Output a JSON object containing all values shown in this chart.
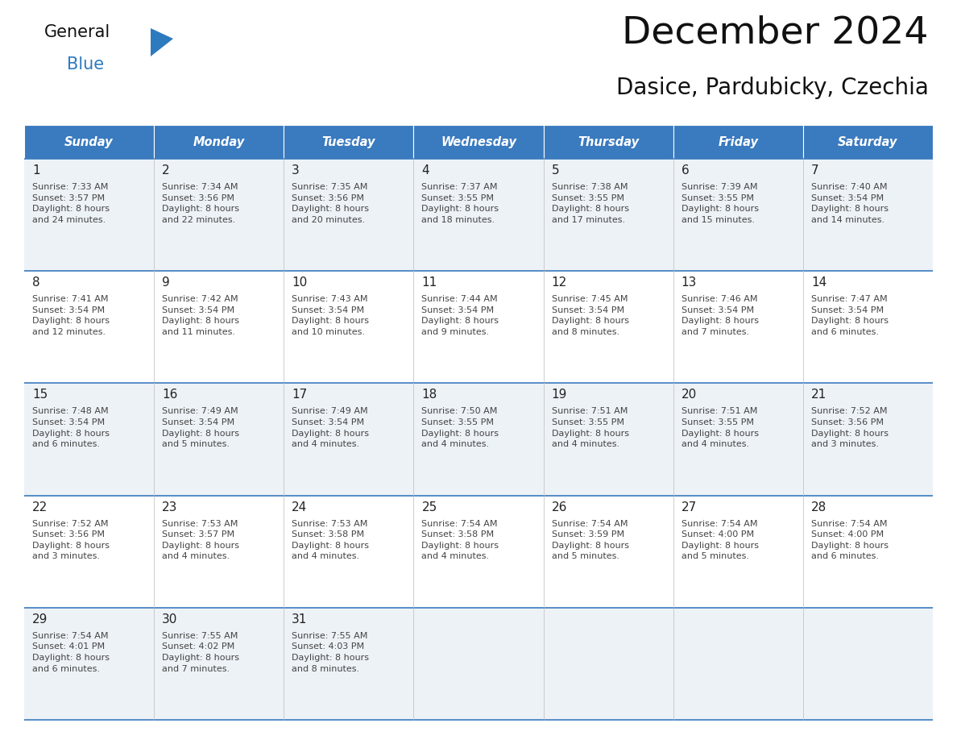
{
  "title": "December 2024",
  "subtitle": "Dasice, Pardubicky, Czechia",
  "days_of_week": [
    "Sunday",
    "Monday",
    "Tuesday",
    "Wednesday",
    "Thursday",
    "Friday",
    "Saturday"
  ],
  "header_bg": "#3a7abf",
  "header_text": "#ffffff",
  "cell_bg_odd": "#edf2f7",
  "cell_bg_even": "#ffffff",
  "line_color": "#3a7abf",
  "day_number_color": "#222222",
  "cell_text_color": "#444444",
  "title_color": "#111111",
  "logo_general_color": "#111111",
  "logo_blue_color": "#2e7abf",
  "calendar_data": [
    [
      {
        "day": 1,
        "sunrise": "7:33 AM",
        "sunset": "3:57 PM",
        "daylight": "8 hours\nand 24 minutes."
      },
      {
        "day": 2,
        "sunrise": "7:34 AM",
        "sunset": "3:56 PM",
        "daylight": "8 hours\nand 22 minutes."
      },
      {
        "day": 3,
        "sunrise": "7:35 AM",
        "sunset": "3:56 PM",
        "daylight": "8 hours\nand 20 minutes."
      },
      {
        "day": 4,
        "sunrise": "7:37 AM",
        "sunset": "3:55 PM",
        "daylight": "8 hours\nand 18 minutes."
      },
      {
        "day": 5,
        "sunrise": "7:38 AM",
        "sunset": "3:55 PM",
        "daylight": "8 hours\nand 17 minutes."
      },
      {
        "day": 6,
        "sunrise": "7:39 AM",
        "sunset": "3:55 PM",
        "daylight": "8 hours\nand 15 minutes."
      },
      {
        "day": 7,
        "sunrise": "7:40 AM",
        "sunset": "3:54 PM",
        "daylight": "8 hours\nand 14 minutes."
      }
    ],
    [
      {
        "day": 8,
        "sunrise": "7:41 AM",
        "sunset": "3:54 PM",
        "daylight": "8 hours\nand 12 minutes."
      },
      {
        "day": 9,
        "sunrise": "7:42 AM",
        "sunset": "3:54 PM",
        "daylight": "8 hours\nand 11 minutes."
      },
      {
        "day": 10,
        "sunrise": "7:43 AM",
        "sunset": "3:54 PM",
        "daylight": "8 hours\nand 10 minutes."
      },
      {
        "day": 11,
        "sunrise": "7:44 AM",
        "sunset": "3:54 PM",
        "daylight": "8 hours\nand 9 minutes."
      },
      {
        "day": 12,
        "sunrise": "7:45 AM",
        "sunset": "3:54 PM",
        "daylight": "8 hours\nand 8 minutes."
      },
      {
        "day": 13,
        "sunrise": "7:46 AM",
        "sunset": "3:54 PM",
        "daylight": "8 hours\nand 7 minutes."
      },
      {
        "day": 14,
        "sunrise": "7:47 AM",
        "sunset": "3:54 PM",
        "daylight": "8 hours\nand 6 minutes."
      }
    ],
    [
      {
        "day": 15,
        "sunrise": "7:48 AM",
        "sunset": "3:54 PM",
        "daylight": "8 hours\nand 6 minutes."
      },
      {
        "day": 16,
        "sunrise": "7:49 AM",
        "sunset": "3:54 PM",
        "daylight": "8 hours\nand 5 minutes."
      },
      {
        "day": 17,
        "sunrise": "7:49 AM",
        "sunset": "3:54 PM",
        "daylight": "8 hours\nand 4 minutes."
      },
      {
        "day": 18,
        "sunrise": "7:50 AM",
        "sunset": "3:55 PM",
        "daylight": "8 hours\nand 4 minutes."
      },
      {
        "day": 19,
        "sunrise": "7:51 AM",
        "sunset": "3:55 PM",
        "daylight": "8 hours\nand 4 minutes."
      },
      {
        "day": 20,
        "sunrise": "7:51 AM",
        "sunset": "3:55 PM",
        "daylight": "8 hours\nand 4 minutes."
      },
      {
        "day": 21,
        "sunrise": "7:52 AM",
        "sunset": "3:56 PM",
        "daylight": "8 hours\nand 3 minutes."
      }
    ],
    [
      {
        "day": 22,
        "sunrise": "7:52 AM",
        "sunset": "3:56 PM",
        "daylight": "8 hours\nand 3 minutes."
      },
      {
        "day": 23,
        "sunrise": "7:53 AM",
        "sunset": "3:57 PM",
        "daylight": "8 hours\nand 4 minutes."
      },
      {
        "day": 24,
        "sunrise": "7:53 AM",
        "sunset": "3:58 PM",
        "daylight": "8 hours\nand 4 minutes."
      },
      {
        "day": 25,
        "sunrise": "7:54 AM",
        "sunset": "3:58 PM",
        "daylight": "8 hours\nand 4 minutes."
      },
      {
        "day": 26,
        "sunrise": "7:54 AM",
        "sunset": "3:59 PM",
        "daylight": "8 hours\nand 5 minutes."
      },
      {
        "day": 27,
        "sunrise": "7:54 AM",
        "sunset": "4:00 PM",
        "daylight": "8 hours\nand 5 minutes."
      },
      {
        "day": 28,
        "sunrise": "7:54 AM",
        "sunset": "4:00 PM",
        "daylight": "8 hours\nand 6 minutes."
      }
    ],
    [
      {
        "day": 29,
        "sunrise": "7:54 AM",
        "sunset": "4:01 PM",
        "daylight": "8 hours\nand 6 minutes."
      },
      {
        "day": 30,
        "sunrise": "7:55 AM",
        "sunset": "4:02 PM",
        "daylight": "8 hours\nand 7 minutes."
      },
      {
        "day": 31,
        "sunrise": "7:55 AM",
        "sunset": "4:03 PM",
        "daylight": "8 hours\nand 8 minutes."
      },
      null,
      null,
      null,
      null
    ]
  ]
}
